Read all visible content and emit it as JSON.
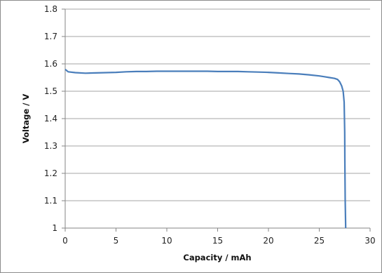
{
  "chart_data": {
    "type": "line",
    "title": "",
    "xlabel": "Capacity  /  mAh",
    "ylabel": "Voltage  /  V",
    "xlim": [
      0,
      30
    ],
    "ylim": [
      1.0,
      1.8
    ],
    "x_ticks": [
      0,
      5,
      10,
      15,
      20,
      25,
      30
    ],
    "y_ticks": [
      1,
      1.1,
      1.2,
      1.3,
      1.4,
      1.5,
      1.6,
      1.7,
      1.8
    ],
    "x_tick_labels": [
      "0",
      "5",
      "10",
      "15",
      "20",
      "25",
      "30"
    ],
    "y_tick_labels": [
      "1",
      "1.1",
      "1.2",
      "1.3",
      "1.4",
      "1.5",
      "1.6",
      "1.7",
      "1.8"
    ],
    "grid": "horizontal",
    "legend": "none",
    "series": [
      {
        "color": "#4a7ebb",
        "x": [
          0,
          0.3,
          1,
          2,
          3,
          4,
          5,
          6,
          7,
          8,
          9,
          10,
          11,
          12,
          13,
          14,
          15,
          16,
          17,
          18,
          19,
          20,
          21,
          22,
          23,
          24,
          25,
          25.5,
          26,
          26.5,
          26.8,
          27.0,
          27.2,
          27.35,
          27.45,
          27.5,
          27.52,
          27.55,
          27.6
        ],
        "y": [
          1.58,
          1.571,
          1.568,
          1.566,
          1.567,
          1.568,
          1.569,
          1.571,
          1.572,
          1.572,
          1.573,
          1.573,
          1.573,
          1.573,
          1.573,
          1.573,
          1.572,
          1.572,
          1.572,
          1.571,
          1.57,
          1.569,
          1.567,
          1.565,
          1.563,
          1.56,
          1.556,
          1.553,
          1.55,
          1.547,
          1.543,
          1.535,
          1.52,
          1.5,
          1.46,
          1.35,
          1.25,
          1.1,
          1.0
        ]
      }
    ]
  }
}
